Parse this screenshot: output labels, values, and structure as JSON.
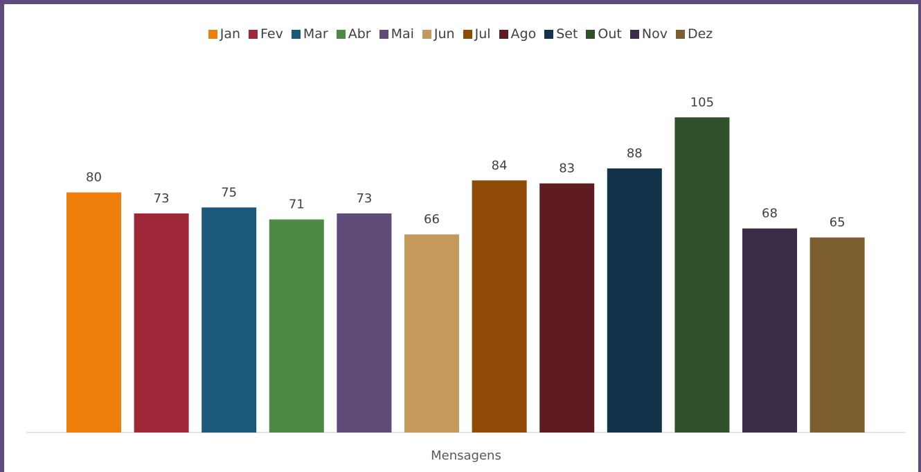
{
  "chart_data": {
    "type": "bar",
    "categories": [
      "Mensagens"
    ],
    "xlabel": "Mensagens",
    "series": [
      {
        "name": "Jan",
        "values": [
          80
        ],
        "color": "#ee7f0a"
      },
      {
        "name": "Fev",
        "values": [
          73
        ],
        "color": "#9e2738"
      },
      {
        "name": "Mar",
        "values": [
          75
        ],
        "color": "#1c587a"
      },
      {
        "name": "Abr",
        "values": [
          71
        ],
        "color": "#4e8a44"
      },
      {
        "name": "Mai",
        "values": [
          73
        ],
        "color": "#5f4a78"
      },
      {
        "name": "Jun",
        "values": [
          66
        ],
        "color": "#c39a5c"
      },
      {
        "name": "Jul",
        "values": [
          84
        ],
        "color": "#8e4a06"
      },
      {
        "name": "Ago",
        "values": [
          83
        ],
        "color": "#5e1b22"
      },
      {
        "name": "Set",
        "values": [
          88
        ],
        "color": "#12334a"
      },
      {
        "name": "Out",
        "values": [
          105
        ],
        "color": "#31512b"
      },
      {
        "name": "Nov",
        "values": [
          68
        ],
        "color": "#3b2c47"
      },
      {
        "name": "Dez",
        "values": [
          65
        ],
        "color": "#7c5e2f"
      }
    ],
    "ylim": [
      0,
      120
    ],
    "legend_position": "top",
    "grid": false,
    "data_labels": true
  }
}
